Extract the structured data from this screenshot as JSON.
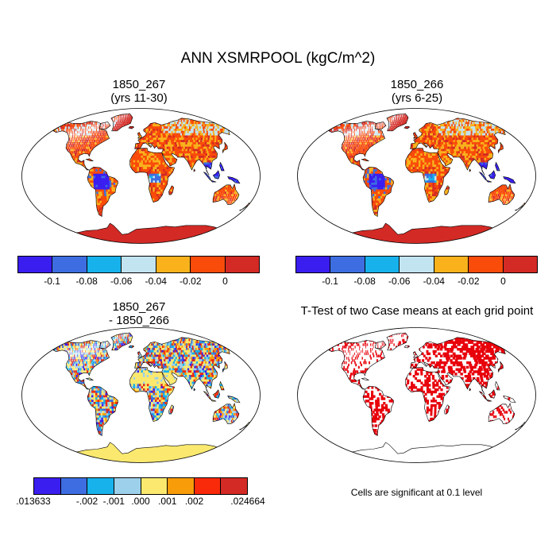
{
  "main_title": "ANN XSMRPOOL (kgC/m^2)",
  "panels": [
    {
      "title_line1": "1850_267",
      "title_line2": "(yrs 11-30)"
    },
    {
      "title_line1": "1850_266",
      "title_line2": "(yrs 6-25)"
    },
    {
      "title_line1": "1850_267",
      "title_line2": "- 1850_266"
    },
    {
      "title_line1": "T-Test of two Case means at each grid point",
      "title_line2": ""
    }
  ],
  "colorbar_top": {
    "colors": [
      "#3a1ef0",
      "#3d6de0",
      "#17b2ec",
      "#c2e4f0",
      "#f9b21c",
      "#f94b0a",
      "#d32a25"
    ],
    "labels": [
      "-0.1",
      "-0.08",
      "-0.06",
      "-0.04",
      "-0.02",
      "0"
    ]
  },
  "colorbar_diff": {
    "colors": [
      "#3a1ef0",
      "#3d6de0",
      "#17b2ec",
      "#9dd0ea",
      "#fbe96f",
      "#f99c0a",
      "#f92a0a",
      "#d32a25"
    ],
    "labels": [
      ".013633",
      "-.002",
      "-.001",
      ".000",
      ".001",
      ".002",
      ".024664"
    ]
  },
  "ttest_note": "Cells are significant at 0.1 level",
  "colors": {
    "antarctica_top": "#d32a25",
    "antarctica_diff": "#fbe96f",
    "significant": "#e8000b"
  }
}
